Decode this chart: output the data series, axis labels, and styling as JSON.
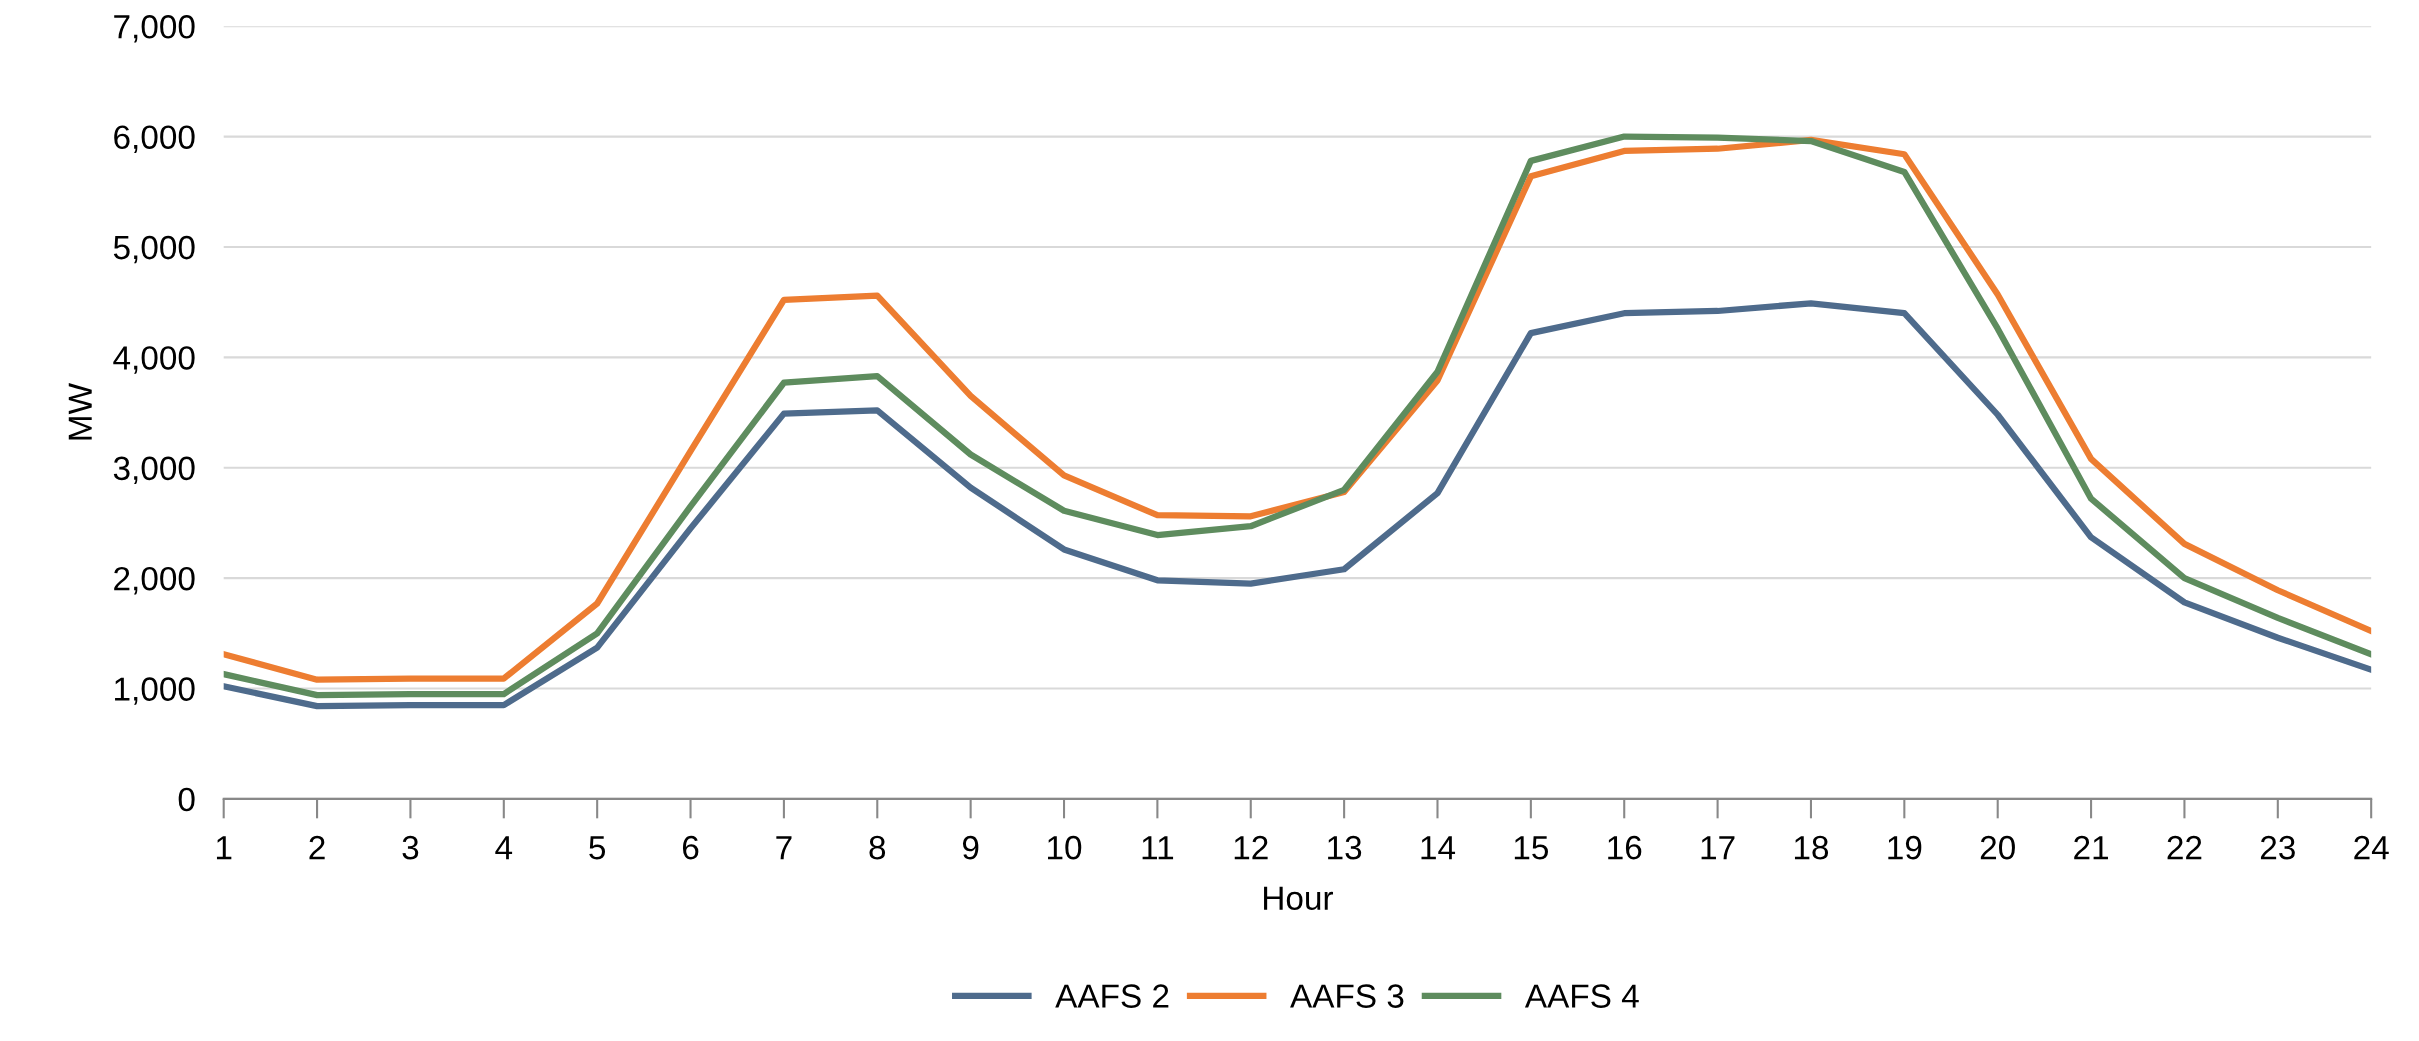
{
  "chart_data": {
    "type": "line",
    "xlabel": "Hour",
    "ylabel": "MW",
    "categories": [
      "1",
      "2",
      "3",
      "4",
      "5",
      "6",
      "7",
      "8",
      "9",
      "10",
      "11",
      "12",
      "13",
      "14",
      "15",
      "16",
      "17",
      "18",
      "19",
      "20",
      "21",
      "22",
      "23",
      "24"
    ],
    "series": [
      {
        "name": "AAFS 2",
        "color": "#4e6b8c",
        "values": [
          1020,
          840,
          850,
          850,
          1370,
          2450,
          3490,
          3520,
          2820,
          2260,
          1980,
          1950,
          2080,
          2770,
          4220,
          4400,
          4420,
          4490,
          4400,
          3480,
          2370,
          1780,
          1460,
          1170
        ]
      },
      {
        "name": "AAFS 3",
        "color": "#ed7d31",
        "values": [
          1310,
          1080,
          1090,
          1090,
          1770,
          3150,
          4520,
          4560,
          3650,
          2930,
          2570,
          2560,
          2780,
          3790,
          5640,
          5870,
          5890,
          5970,
          5840,
          4570,
          3080,
          2310,
          1890,
          1520
        ]
      },
      {
        "name": "AAFS 4",
        "color": "#5e8c5e",
        "values": [
          1130,
          940,
          950,
          950,
          1500,
          2650,
          3770,
          3830,
          3120,
          2610,
          2390,
          2470,
          2800,
          3870,
          5780,
          6000,
          5990,
          5960,
          5680,
          4260,
          2720,
          2000,
          1640,
          1310
        ]
      }
    ],
    "ylim": [
      0,
      7000
    ],
    "yticks": [
      {
        "value": 0,
        "label": "0"
      },
      {
        "value": 1000,
        "label": "1,000"
      },
      {
        "value": 2000,
        "label": "2,000"
      },
      {
        "value": 3000,
        "label": "3,000"
      },
      {
        "value": 4000,
        "label": "4,000"
      },
      {
        "value": 5000,
        "label": "5,000"
      },
      {
        "value": 6000,
        "label": "6,000"
      },
      {
        "value": 7000,
        "label": "7,000"
      }
    ],
    "grid": "y",
    "legend": "bottom",
    "marker": "none",
    "line_style": "solid"
  }
}
